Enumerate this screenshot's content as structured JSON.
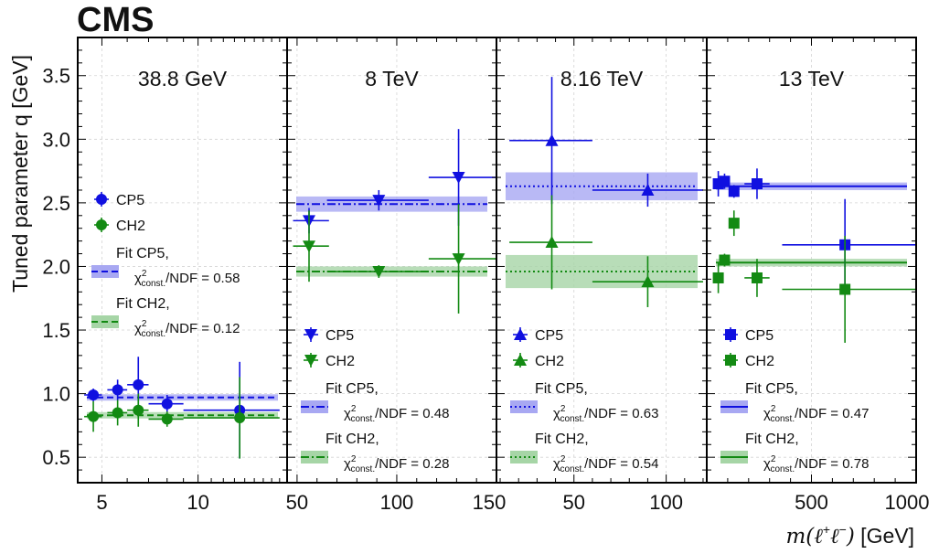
{
  "experiment": "CMS",
  "ylabel": "Tuned parameter q [GeV]",
  "xlabel": "m(ℓ⁺ℓ⁻) [GeV]",
  "colors": {
    "cp5": "#1010e0",
    "ch2": "#138a13",
    "cp5_band": "#a8a8f2",
    "ch2_band": "#a6d5a6"
  },
  "legend_labels": {
    "cp5": "CP5",
    "ch2": "CH2",
    "fit_cp5": "Fit CP5,",
    "fit_ch2": "Fit CH2,",
    "chi2_prefix": "χ²const./NDF = "
  },
  "chart_data": [
    {
      "type": "scatter",
      "title": "38.8 GeV",
      "x_scale": "log",
      "xlim": [
        4.2,
        19
      ],
      "x_major_ticks": [
        5,
        10
      ],
      "ylim": [
        0.3,
        3.8
      ],
      "y_ticks": [
        0.5,
        1.0,
        1.5,
        2.0,
        2.5,
        3.0,
        3.5
      ],
      "marker": "circle",
      "fit_line_style": "dashed",
      "series": [
        {
          "name": "CP5",
          "points": [
            {
              "x": 4.7,
              "y": 0.99,
              "xerr": [
                0.3,
                0.3
              ],
              "yerr": 0.05
            },
            {
              "x": 5.6,
              "y": 1.03,
              "xerr": [
                0.4,
                0.4
              ],
              "yerr": 0.08
            },
            {
              "x": 6.5,
              "y": 1.07,
              "xerr": [
                0.5,
                0.5
              ],
              "yerr": 0.22
            },
            {
              "x": 8.0,
              "y": 0.92,
              "xerr": [
                1.0,
                1.0
              ],
              "yerr": 0.07
            },
            {
              "x": 13.5,
              "y": 0.87,
              "xerr": [
                4.5,
                4.5
              ],
              "yerr": 0.38
            }
          ]
        },
        {
          "name": "CH2",
          "points": [
            {
              "x": 4.7,
              "y": 0.82,
              "xerr": [
                0.3,
                0.3
              ],
              "yerr": 0.12
            },
            {
              "x": 5.6,
              "y": 0.85,
              "xerr": [
                0.4,
                0.4
              ],
              "yerr": 0.1
            },
            {
              "x": 6.5,
              "y": 0.87,
              "xerr": [
                0.5,
                0.5
              ],
              "yerr": 0.13
            },
            {
              "x": 8.0,
              "y": 0.8,
              "xerr": [
                1.0,
                1.0
              ],
              "yerr": 0.06
            },
            {
              "x": 13.5,
              "y": 0.81,
              "xerr": [
                4.5,
                4.5
              ],
              "yerr": 0.32
            }
          ]
        }
      ],
      "fits": [
        {
          "name": "Fit CP5",
          "value": 0.97,
          "band": [
            0.945,
            0.995
          ],
          "chi2_ndf": "0.58"
        },
        {
          "name": "Fit CH2",
          "value": 0.83,
          "band": [
            0.805,
            0.855
          ],
          "chi2_ndf": "0.12"
        }
      ]
    },
    {
      "type": "scatter",
      "title": "8 TeV",
      "x_scale": "linear",
      "xlim": [
        45,
        150
      ],
      "x_major_ticks": [
        50,
        100,
        150
      ],
      "ylim": [
        0.3,
        3.8
      ],
      "marker": "triangle-down",
      "fit_line_style": "dashdot",
      "series": [
        {
          "name": "CP5",
          "points": [
            {
              "x": 56,
              "y": 2.36,
              "xerr": [
                8,
                10
              ],
              "yerr": 0.1
            },
            {
              "x": 91,
              "y": 2.52,
              "xerr": [
                26,
                25
              ],
              "yerr": 0.08
            },
            {
              "x": 131,
              "y": 2.7,
              "xerr": [
                15,
                19
              ],
              "yerr": 0.38
            }
          ]
        },
        {
          "name": "CH2",
          "points": [
            {
              "x": 56,
              "y": 2.16,
              "xerr": [
                8,
                10
              ],
              "yerr": 0.28
            },
            {
              "x": 91,
              "y": 1.96,
              "xerr": [
                26,
                25
              ],
              "yerr": 0.05
            },
            {
              "x": 131,
              "y": 2.06,
              "xerr": [
                15,
                19
              ],
              "yerr": 0.43
            }
          ]
        }
      ],
      "fits": [
        {
          "name": "Fit CP5",
          "value": 2.49,
          "band": [
            2.43,
            2.55
          ],
          "chi2_ndf": "0.48"
        },
        {
          "name": "Fit CH2",
          "value": 1.96,
          "band": [
            1.92,
            2.0
          ],
          "chi2_ndf": "0.28"
        }
      ]
    },
    {
      "type": "scatter",
      "title": "8.16 TeV",
      "x_scale": "linear",
      "xlim": [
        8,
        122
      ],
      "x_major_ticks": [
        50,
        100
      ],
      "ylim": [
        0.3,
        3.8
      ],
      "marker": "triangle-up",
      "fit_line_style": "dotted",
      "series": [
        {
          "name": "CP5",
          "points": [
            {
              "x": 38,
              "y": 2.99,
              "xerr": [
                23,
                22
              ],
              "yerr": 0.5
            },
            {
              "x": 90,
              "y": 2.6,
              "xerr": [
                30,
                30
              ],
              "yerr": 0.13
            }
          ]
        },
        {
          "name": "CH2",
          "points": [
            {
              "x": 38,
              "y": 2.19,
              "xerr": [
                23,
                22
              ],
              "yerr": 0.37
            },
            {
              "x": 90,
              "y": 1.88,
              "xerr": [
                30,
                30
              ],
              "yerr": 0.2
            }
          ]
        }
      ],
      "fits": [
        {
          "name": "Fit CP5",
          "value": 2.63,
          "band": [
            2.52,
            2.74
          ],
          "chi2_ndf": "0.63"
        },
        {
          "name": "Fit CH2",
          "value": 1.96,
          "band": [
            1.83,
            2.09
          ],
          "chi2_ndf": "0.54"
        }
      ]
    },
    {
      "type": "scatter",
      "title": "13 TeV",
      "x_scale": "linear",
      "xlim": [
        0,
        1000
      ],
      "x_major_ticks": [
        500,
        1000
      ],
      "ylim": [
        0.3,
        3.8
      ],
      "marker": "square",
      "fit_line_style": "solid",
      "series": [
        {
          "name": "CP5",
          "points": [
            {
              "x": 55,
              "y": 2.65,
              "xerr": [
                15,
                15
              ],
              "yerr": 0.1
            },
            {
              "x": 85,
              "y": 2.67,
              "xerr": [
                15,
                15
              ],
              "yerr": 0.06
            },
            {
              "x": 130,
              "y": 2.59,
              "xerr": [
                25,
                25
              ],
              "yerr": 0.05
            },
            {
              "x": 240,
              "y": 2.65,
              "xerr": [
                60,
                60
              ],
              "yerr": 0.12
            },
            {
              "x": 660,
              "y": 2.17,
              "xerr": [
                300,
                340
              ],
              "yerr": 0.36
            }
          ]
        },
        {
          "name": "CH2",
          "points": [
            {
              "x": 55,
              "y": 1.91,
              "xerr": [
                15,
                15
              ],
              "yerr": 0.12
            },
            {
              "x": 85,
              "y": 2.05,
              "xerr": [
                15,
                15
              ],
              "yerr": 0.05
            },
            {
              "x": 130,
              "y": 2.34,
              "xerr": [
                25,
                25
              ],
              "yerr": 0.1
            },
            {
              "x": 240,
              "y": 1.91,
              "xerr": [
                60,
                60
              ],
              "yerr": 0.15
            },
            {
              "x": 660,
              "y": 1.82,
              "xerr": [
                300,
                340
              ],
              "yerr": 0.42
            }
          ]
        }
      ],
      "fits": [
        {
          "name": "Fit CP5",
          "value": 2.63,
          "band": [
            2.6,
            2.66
          ],
          "chi2_ndf": "0.47"
        },
        {
          "name": "Fit CH2",
          "value": 2.03,
          "band": [
            2.0,
            2.06
          ],
          "chi2_ndf": "0.78"
        }
      ]
    }
  ]
}
